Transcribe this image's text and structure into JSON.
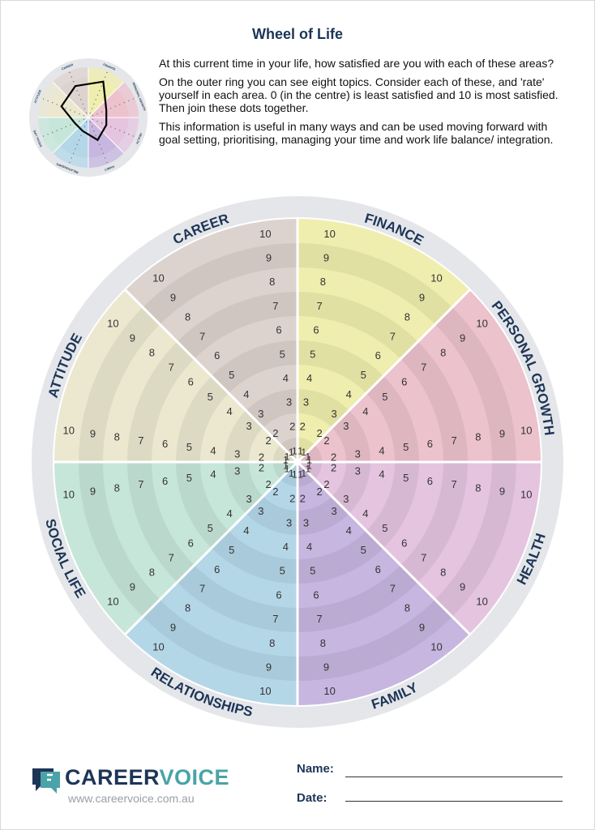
{
  "title": "Wheel of Life",
  "intro": {
    "p1": "At this current time in your life, how satisfied are you with each of these areas?",
    "p2": "On the outer ring you can see eight topics. Consider each of these, and 'rate' yourself in each area. 0 (in the centre) is least satisfied and 10 is most satisfied. Then join these dots together.",
    "p3": "This information is useful in many ways and can be used moving forward with goal setting, prioritising, managing your time and work life balance/ integration."
  },
  "segments": [
    {
      "label": "FINANCE",
      "color": "#efeeae"
    },
    {
      "label": "PERSONAL GROWTH",
      "color": "#ecc2cd"
    },
    {
      "label": "HEALTH",
      "color": "#e5c4e0"
    },
    {
      "label": "FAMILY",
      "color": "#c7b6e0"
    },
    {
      "label": "RELATIONSHIPS",
      "color": "#b4d7e8"
    },
    {
      "label": "SOCIAL LIFE",
      "color": "#c6e6da"
    },
    {
      "label": "ATTITUDE",
      "color": "#ebe8cf"
    },
    {
      "label": "CAREER",
      "color": "#ddd3ce"
    }
  ],
  "scale": [
    "1",
    "2",
    "3",
    "4",
    "5",
    "6",
    "7",
    "8",
    "9",
    "10"
  ],
  "thumbnail": {
    "labels": [
      "CAREER",
      "FINANCE",
      "PERSONAL GROWTH",
      "HEALTH",
      "FAMILY",
      "RELATIONSHIPS",
      "SOCIAL LIFE",
      "ATTITUDE"
    ],
    "example_ratings": [
      7,
      8,
      4,
      4,
      5,
      3,
      3,
      6
    ]
  },
  "brand": {
    "part1": "CAREER",
    "part2": "VOICE",
    "url": "www.careervoice.com.au"
  },
  "form": {
    "name_label": "Name:",
    "date_label": "Date:"
  }
}
